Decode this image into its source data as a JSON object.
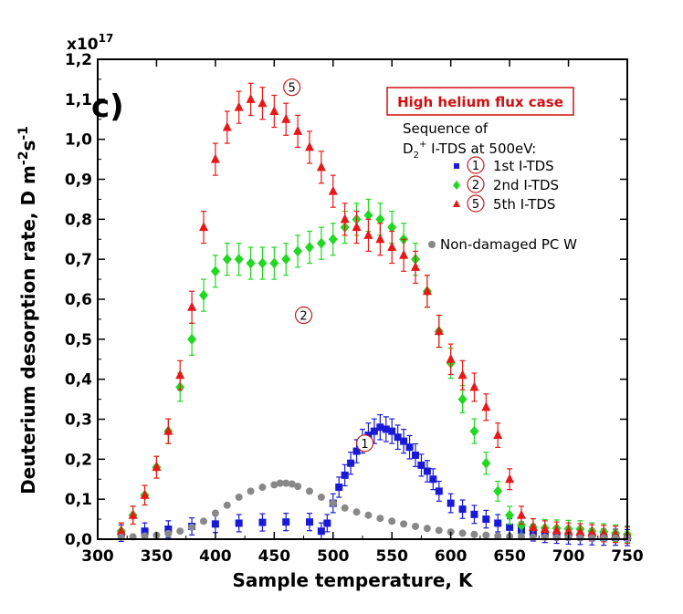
{
  "chart_data": {
    "type": "scatter",
    "panel_label": "c)",
    "title_box": "High helium flux case",
    "xlabel": "Sample temperature, K",
    "ylabel": "Deuterium desorption rate,  D m^-2s^-1",
    "ylabel_parts": [
      "Deuterium desorption rate,  D m",
      "-2",
      "s",
      "-1"
    ],
    "y_multiplier": "x10",
    "y_multiplier_exp": "17",
    "xlim": [
      300,
      750
    ],
    "ylim": [
      0.0,
      1.2
    ],
    "x_ticks": [
      "300",
      "350",
      "400",
      "450",
      "500",
      "550",
      "600",
      "650",
      "700",
      "750"
    ],
    "y_ticks": [
      "0,0",
      "0,1",
      "0,2",
      "0,3",
      "0,4",
      "0,5",
      "0,6",
      "0,7",
      "0,8",
      "0,9",
      "1,0",
      "1,1",
      "1,2"
    ],
    "legend_header": [
      "Sequence of",
      "D",
      "2",
      "+",
      " I-TDS at 500eV:"
    ],
    "series": [
      {
        "name": "1st I-TDS",
        "marker_number": "1",
        "color": "#1a1ad6",
        "marker": "square",
        "x": [
          320,
          340,
          360,
          380,
          400,
          420,
          440,
          460,
          480,
          490,
          495,
          500,
          505,
          510,
          515,
          520,
          525,
          530,
          535,
          540,
          545,
          550,
          555,
          560,
          565,
          570,
          575,
          580,
          585,
          590,
          600,
          610,
          620,
          630,
          640,
          650,
          660,
          670,
          680,
          690,
          700,
          710,
          720,
          730,
          740,
          750
        ],
        "y": [
          0.015,
          0.02,
          0.025,
          0.032,
          0.038,
          0.04,
          0.042,
          0.043,
          0.043,
          0.02,
          0.04,
          0.09,
          0.13,
          0.16,
          0.19,
          0.22,
          0.245,
          0.26,
          0.27,
          0.28,
          0.275,
          0.27,
          0.255,
          0.245,
          0.23,
          0.21,
          0.185,
          0.17,
          0.15,
          0.12,
          0.09,
          0.075,
          0.062,
          0.05,
          0.04,
          0.03,
          0.022,
          0.016,
          0.012,
          0.01,
          0.008,
          0.007,
          0.006,
          0.005,
          0.005,
          0.004
        ]
      },
      {
        "name": "2nd I-TDS",
        "marker_number": "2",
        "color": "#22d822",
        "marker": "diamond",
        "x": [
          320,
          330,
          340,
          350,
          360,
          370,
          380,
          390,
          400,
          410,
          420,
          430,
          440,
          450,
          460,
          470,
          480,
          490,
          500,
          510,
          520,
          530,
          540,
          550,
          560,
          570,
          580,
          590,
          600,
          610,
          620,
          630,
          640,
          650,
          660,
          670,
          680,
          690,
          700,
          710,
          720,
          730,
          740,
          750
        ],
        "y": [
          0.02,
          0.06,
          0.11,
          0.18,
          0.27,
          0.38,
          0.5,
          0.61,
          0.67,
          0.7,
          0.7,
          0.69,
          0.69,
          0.69,
          0.7,
          0.72,
          0.73,
          0.74,
          0.75,
          0.78,
          0.8,
          0.81,
          0.8,
          0.78,
          0.75,
          0.7,
          0.62,
          0.52,
          0.44,
          0.35,
          0.27,
          0.19,
          0.12,
          0.06,
          0.035,
          0.03,
          0.028,
          0.027,
          0.026,
          0.025,
          0.02,
          0.018,
          0.015,
          0.012
        ]
      },
      {
        "name": "5th  I-TDS",
        "marker_number": "5",
        "color": "#e81818",
        "marker": "triangle",
        "x": [
          320,
          330,
          340,
          350,
          360,
          370,
          380,
          390,
          400,
          410,
          420,
          430,
          440,
          450,
          460,
          470,
          480,
          490,
          500,
          510,
          520,
          530,
          540,
          550,
          560,
          570,
          580,
          590,
          600,
          610,
          620,
          630,
          640,
          650,
          660,
          670,
          680,
          690,
          700,
          710,
          720,
          730,
          740,
          750
        ],
        "y": [
          0.02,
          0.06,
          0.11,
          0.18,
          0.27,
          0.41,
          0.58,
          0.78,
          0.95,
          1.03,
          1.08,
          1.1,
          1.09,
          1.07,
          1.05,
          1.02,
          0.98,
          0.93,
          0.87,
          0.8,
          0.78,
          0.76,
          0.75,
          0.73,
          0.71,
          0.68,
          0.62,
          0.52,
          0.45,
          0.41,
          0.38,
          0.33,
          0.26,
          0.15,
          0.06,
          0.03,
          0.025,
          0.022,
          0.02,
          0.018,
          0.016,
          0.014,
          0.012,
          0.01
        ]
      },
      {
        "name": "Non-damaged PC W",
        "marker_number": "",
        "color": "#888888",
        "marker": "circle",
        "x": [
          320,
          330,
          340,
          350,
          360,
          370,
          380,
          390,
          400,
          410,
          420,
          430,
          440,
          450,
          455,
          460,
          465,
          470,
          480,
          490,
          500,
          510,
          520,
          530,
          540,
          550,
          560,
          570,
          580,
          590,
          600,
          610,
          620,
          630,
          640,
          650,
          660,
          670,
          680,
          690,
          700,
          710,
          720,
          730,
          740,
          750
        ],
        "y": [
          0.005,
          0.006,
          0.008,
          0.01,
          0.014,
          0.02,
          0.03,
          0.045,
          0.065,
          0.085,
          0.105,
          0.12,
          0.13,
          0.136,
          0.14,
          0.14,
          0.138,
          0.132,
          0.12,
          0.105,
          0.09,
          0.078,
          0.068,
          0.06,
          0.052,
          0.045,
          0.038,
          0.032,
          0.027,
          0.022,
          0.018,
          0.015,
          0.012,
          0.01,
          0.008,
          0.007,
          0.006,
          0.005,
          0.005,
          0.004,
          0.004,
          0.003,
          0.003,
          0.003,
          0.003,
          0.002
        ]
      }
    ],
    "curve_callouts": [
      {
        "series": 0,
        "label": "1",
        "x": 527,
        "y": 0.24
      },
      {
        "series": 1,
        "label": "2",
        "x": 475,
        "y": 0.56
      },
      {
        "series": 2,
        "label": "5",
        "x": 465,
        "y": 1.13
      }
    ]
  }
}
